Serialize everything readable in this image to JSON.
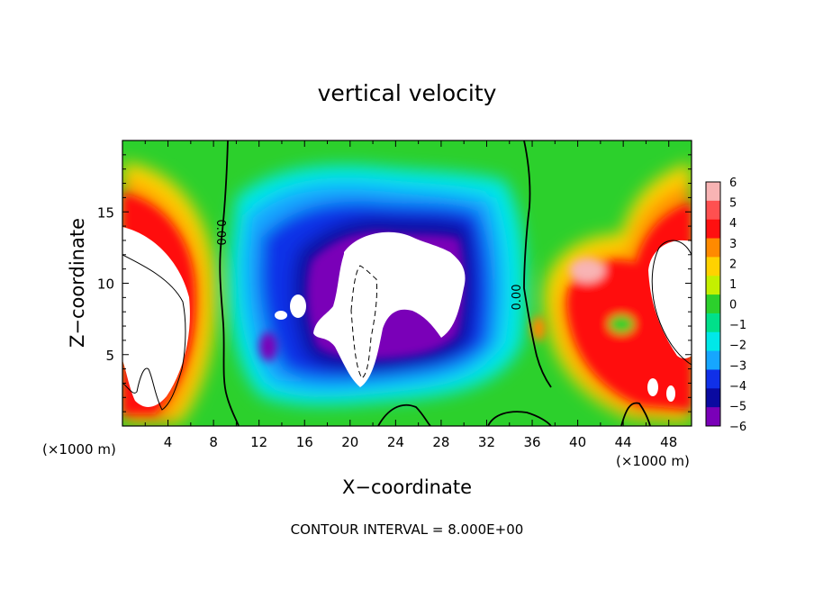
{
  "chart_data": {
    "type": "heatmap",
    "title": "vertical velocity",
    "xlabel": "X−coordinate",
    "ylabel": "Z−coordinate",
    "x_unit_left": "(×1000 m)",
    "x_unit_right": "(×1000 m)",
    "xlim": [
      0,
      50
    ],
    "ylim": [
      0,
      20
    ],
    "x_ticks": [
      4,
      8,
      12,
      16,
      20,
      24,
      28,
      32,
      36,
      40,
      44,
      48
    ],
    "y_ticks": [
      5,
      10,
      15
    ],
    "colorbar": {
      "levels": [
        6,
        5,
        4,
        3,
        2,
        1,
        0,
        -1,
        -2,
        -3,
        -4,
        -5,
        -6
      ],
      "labels": [
        "6",
        "5",
        "4",
        "3",
        "2",
        "1",
        "0",
        "−1",
        "−2",
        "−3",
        "−4",
        "−5",
        "−6"
      ],
      "colors": [
        "#f8b4b4",
        "#ff5050",
        "#ff1010",
        "#ff8a00",
        "#ffd200",
        "#c4f000",
        "#2cd02c",
        "#00e08a",
        "#00e8e8",
        "#16a6ff",
        "#1030e8",
        "#0a0aa0",
        "#7a00b8"
      ]
    },
    "contour_labels": [
      "0.00",
      "0.00"
    ],
    "grid": false,
    "regions": [
      {
        "kind": "updraft_core",
        "values": "> 6"
      },
      {
        "kind": "downdraft_core",
        "values": "< -6"
      }
    ],
    "footnote": "CONTOUR INTERVAL = 8.000E+00"
  }
}
